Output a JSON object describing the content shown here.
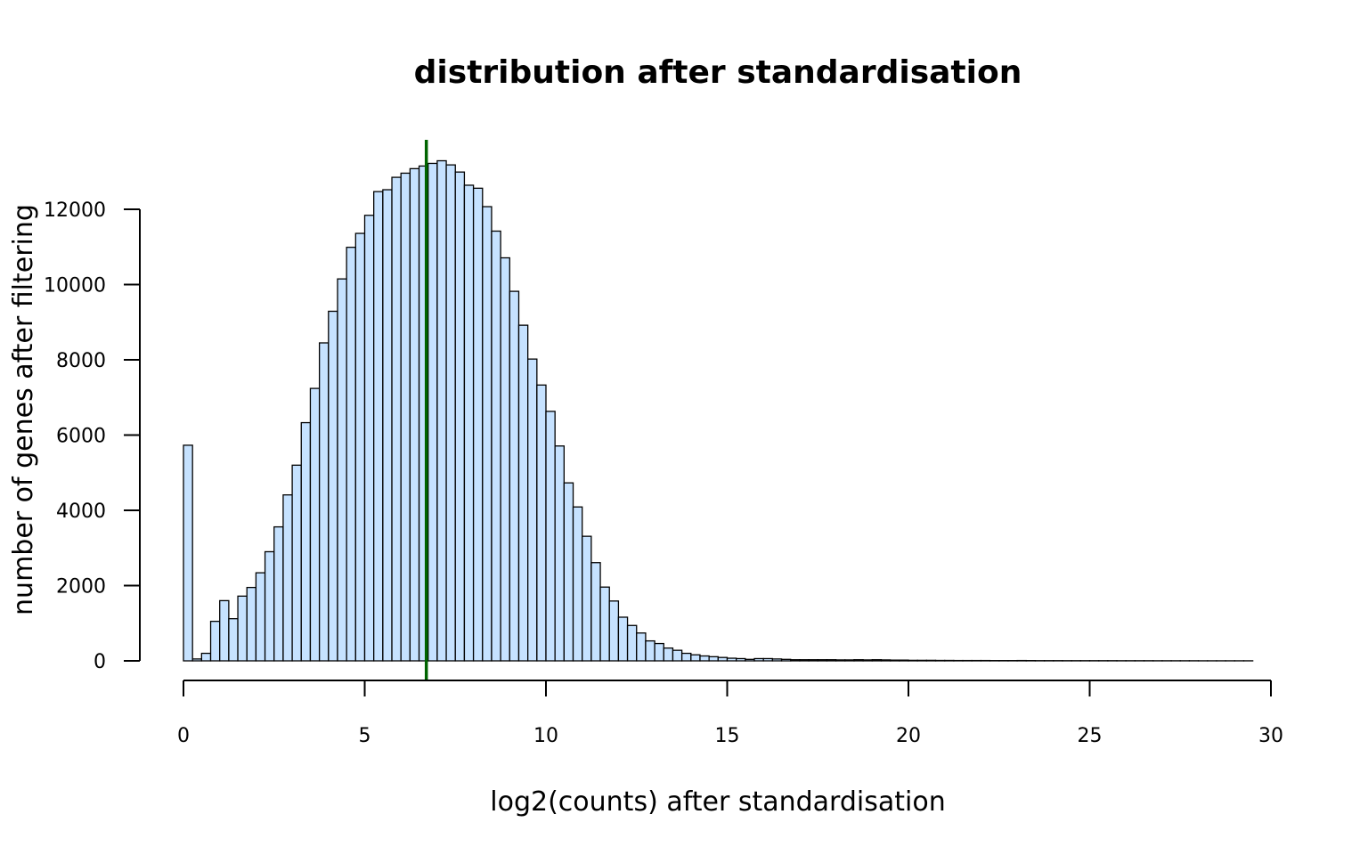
{
  "chart_data": {
    "type": "bar",
    "title": "distribution after standardisation",
    "xlabel": "log2(counts) after standardisation",
    "ylabel": "number of genes after filtering",
    "xlim": [
      0,
      30
    ],
    "ylim": [
      0,
      13300
    ],
    "bin_width": 0.25,
    "bin_start": 0,
    "x_ticks": [
      "0",
      "5",
      "10",
      "15",
      "20",
      "25",
      "30"
    ],
    "x_tick_values": [
      0,
      5,
      10,
      15,
      20,
      25,
      30
    ],
    "y_ticks": [
      "0",
      "2000",
      "4000",
      "6000",
      "8000",
      "10000",
      "12000"
    ],
    "y_tick_values": [
      0,
      2000,
      4000,
      6000,
      8000,
      10000,
      12000
    ],
    "grid": false,
    "colors": {
      "bar_fill": "#c6e2ff",
      "bar_stroke": "#000000",
      "reference_line": "#006400"
    },
    "reference_line": {
      "x": 6.7,
      "label": ""
    },
    "values": [
      5730,
      50,
      200,
      1050,
      1600,
      1120,
      1720,
      1950,
      2340,
      2900,
      3560,
      4410,
      5200,
      6330,
      7240,
      8450,
      9290,
      10150,
      10990,
      11360,
      11840,
      12470,
      12520,
      12850,
      12960,
      13080,
      13150,
      13220,
      13290,
      13180,
      12990,
      12640,
      12560,
      12070,
      11420,
      10710,
      9820,
      8920,
      8020,
      7330,
      6630,
      5710,
      4730,
      4090,
      3310,
      2610,
      1960,
      1590,
      1160,
      940,
      740,
      530,
      460,
      340,
      280,
      200,
      160,
      130,
      110,
      90,
      70,
      60,
      40,
      60,
      60,
      50,
      40,
      30,
      30,
      30,
      30,
      30,
      25,
      25,
      30,
      25,
      30,
      25,
      20,
      20,
      15,
      15,
      15,
      12,
      12,
      10,
      10,
      10,
      10,
      8,
      8,
      8,
      10,
      8,
      6,
      6,
      6,
      5,
      5,
      5,
      5,
      5,
      5,
      4,
      4,
      4,
      4,
      3,
      3,
      3,
      3,
      3,
      2,
      2,
      2,
      2,
      2,
      2
    ]
  }
}
